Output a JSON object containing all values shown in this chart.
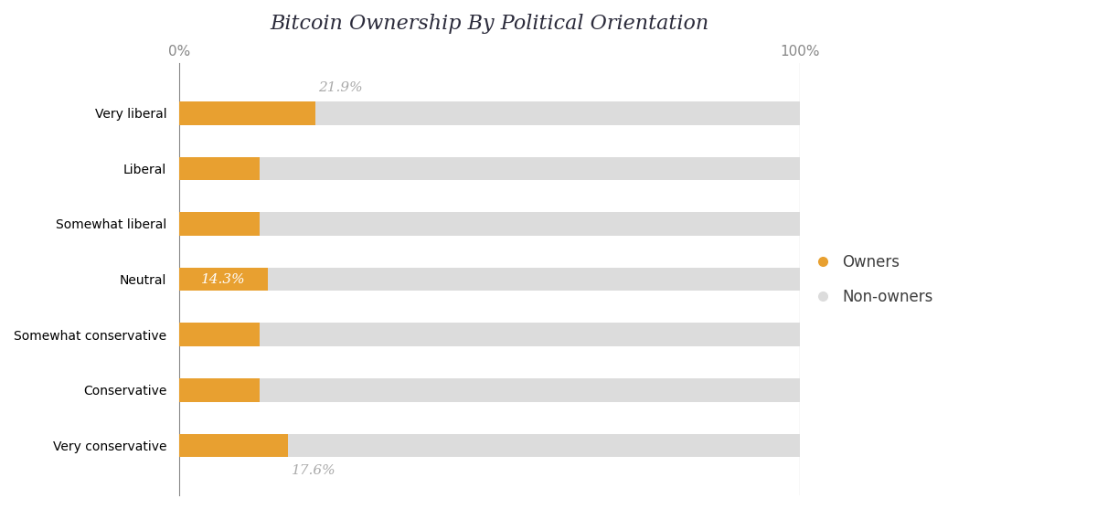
{
  "title": "Bitcoin Ownership By Political Orientation",
  "categories": [
    "Very liberal",
    "Liberal",
    "Somewhat liberal",
    "Neutral",
    "Somewhat conservative",
    "Conservative",
    "Very conservative"
  ],
  "owner_pct": [
    21.9,
    13.0,
    13.0,
    14.3,
    13.0,
    13.0,
    17.6
  ],
  "nonowner_pct": [
    100,
    100,
    100,
    100,
    100,
    100,
    100
  ],
  "owner_color": "#E8A030",
  "nonowner_color": "#DCDCDC",
  "bar_height": 0.42,
  "xlim": [
    0,
    100
  ],
  "annotation_very_liberal": "21.9%",
  "annotation_neutral": "14.3%",
  "annotation_very_conservative": "17.6%",
  "annotation_color_top": "#AAAAAA",
  "annotation_color_inside": "#FFFFFF",
  "annotation_color_bottom": "#AAAAAA",
  "legend_owner_label": "Owners",
  "legend_nonowner_label": "Non-owners",
  "bg_color": "#FFFFFF",
  "title_fontsize": 16,
  "label_fontsize": 12,
  "tick_fontsize": 11
}
